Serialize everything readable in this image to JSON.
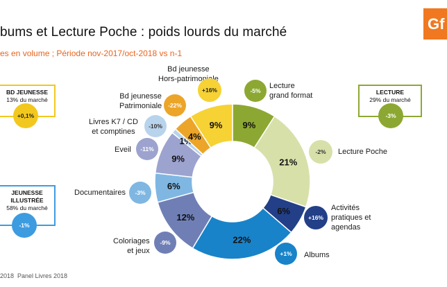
{
  "header": {
    "title": "bums et Lecture Poche : poids lourds du marché",
    "subtitle": "es en volume ; Période nov-2017/oct-2018 vs n-1",
    "logo_text": "Gf"
  },
  "footer": {
    "year": "2018",
    "source": "Panel Livres 2018"
  },
  "summary_boxes": [
    {
      "title": "BD JEUNESSE",
      "share": "13% du marché",
      "change": "+0,1%",
      "border": "#f2c81e",
      "badge": "#f2c81e"
    },
    {
      "title": "LECTURE",
      "share": "29% du marché",
      "change": "-3%",
      "border": "#8da832",
      "badge": "#8da832"
    },
    {
      "title": "JEUNESSE ILLUSTRÉE",
      "share": "58% du marché",
      "change": "-1%",
      "border": "#3d9be0",
      "badge": "#3d9be0"
    }
  ],
  "chart_data": {
    "type": "pie",
    "variant": "donut",
    "slices": [
      {
        "category": "Lecture grand format",
        "value": 9,
        "label": "9%",
        "change": "-5%",
        "color": "#8da832",
        "badge_color": "#8da832"
      },
      {
        "category": "Lecture Poche",
        "value": 21,
        "label": "21%",
        "change": "-2%",
        "color": "#d8e0aa",
        "badge_color": "#d8e0aa"
      },
      {
        "category": "Activités pratiques et agendas",
        "value": 6,
        "label": "6%",
        "change": "+16%",
        "color": "#223f88",
        "badge_color": "#223f88"
      },
      {
        "category": "Albums",
        "value": 22,
        "label": "22%",
        "change": "+1%",
        "color": "#1983c9",
        "badge_color": "#1983c9"
      },
      {
        "category": "Coloriages et jeux",
        "value": 12,
        "label": "12%",
        "change": "-9%",
        "color": "#6f7fb6",
        "badge_color": "#6f7fb6"
      },
      {
        "category": "Documentaires",
        "value": 6,
        "label": "6%",
        "change": "-3%",
        "color": "#7fb7e2",
        "badge_color": "#7fb7e2"
      },
      {
        "category": "Eveil",
        "value": 9,
        "label": "9%",
        "change": "-11%",
        "color": "#9da3cf",
        "badge_color": "#9da3cf"
      },
      {
        "category": "Livres K7 / CD et comptines",
        "value": 1,
        "label": "1%",
        "change": "-10%",
        "color": "#b8d3ec",
        "badge_color": "#b8d3ec"
      },
      {
        "category": "Bd jeunesse Patrimoniale",
        "value": 4,
        "label": "4%",
        "change": "-22%",
        "color": "#eca528",
        "badge_color": "#eca528"
      },
      {
        "category": "Bd jeunesse Hors-patrimoniale",
        "value": 9,
        "label": "9%",
        "change": "+16%",
        "color": "#f6d234",
        "badge_color": "#f6d234"
      }
    ]
  }
}
